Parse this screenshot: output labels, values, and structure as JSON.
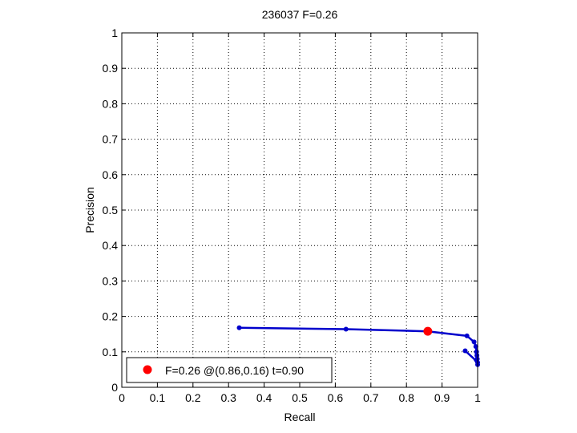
{
  "chart_data": {
    "type": "line",
    "title": "236037 F=0.26",
    "xlabel": "Recall",
    "ylabel": "Precision",
    "xlim": [
      0,
      1
    ],
    "ylim": [
      0,
      1
    ],
    "grid": true,
    "xticks": [
      "0",
      "0.1",
      "0.2",
      "0.3",
      "0.4",
      "0.5",
      "0.6",
      "0.7",
      "0.8",
      "0.9",
      "1"
    ],
    "yticks": [
      "0",
      "0.1",
      "0.2",
      "0.3",
      "0.4",
      "0.5",
      "0.6",
      "0.7",
      "0.8",
      "0.9",
      "1"
    ],
    "series": [
      {
        "color": "#0000cc",
        "x": [
          0.33,
          0.63,
          0.86,
          0.97,
          0.99,
          0.995,
          0.997,
          0.998,
          0.999,
          1.0,
          1.0,
          0.99,
          0.965
        ],
        "y": [
          0.168,
          0.164,
          0.158,
          0.145,
          0.128,
          0.115,
          0.1,
          0.09,
          0.08,
          0.07,
          0.064,
          0.08,
          0.103
        ],
        "markers": [
          {
            "x": 0.33,
            "y": 0.168
          },
          {
            "x": 0.63,
            "y": 0.164
          },
          {
            "x": 0.97,
            "y": 0.145
          },
          {
            "x": 0.99,
            "y": 0.128
          },
          {
            "x": 0.995,
            "y": 0.115
          },
          {
            "x": 0.997,
            "y": 0.1
          },
          {
            "x": 0.998,
            "y": 0.09
          },
          {
            "x": 0.999,
            "y": 0.08
          },
          {
            "x": 1.0,
            "y": 0.07
          },
          {
            "x": 1.0,
            "y": 0.064
          },
          {
            "x": 0.965,
            "y": 0.103
          }
        ]
      }
    ],
    "highlight_point": {
      "x": 0.86,
      "y": 0.158,
      "color": "#ff0000"
    },
    "legend": {
      "placement": "bottom-left",
      "entries": [
        {
          "label": "F=0.26 @(0.86,0.16) t=0.90",
          "color": "#ff0000"
        }
      ]
    }
  }
}
